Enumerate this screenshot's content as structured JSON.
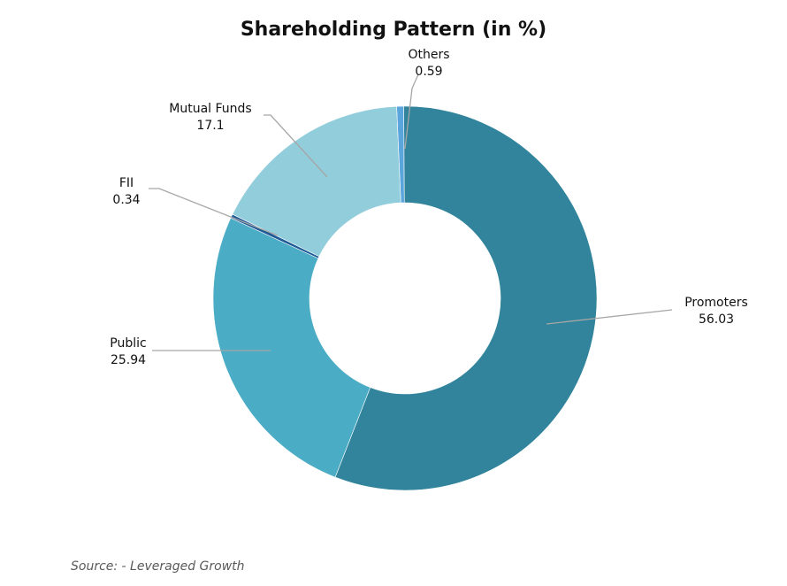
{
  "chart_data": {
    "type": "pie",
    "variant": "donut",
    "title": "Shareholding Pattern (in %)",
    "series": [
      {
        "name": "",
        "values": [
          {
            "label": "Others",
            "value": 0.59,
            "value_text": "0.59",
            "color": "#5aa5dc"
          },
          {
            "label": "Promoters",
            "value": 56.03,
            "value_text": "56.03",
            "color": "#31849b"
          },
          {
            "label": "Public",
            "value": 25.94,
            "value_text": "25.94",
            "color": "#4bacc6"
          },
          {
            "label": "FII",
            "value": 0.34,
            "value_text": "0.34",
            "color": "#1f5a96"
          },
          {
            "label": "Mutual Funds",
            "value": 17.1,
            "value_text": "17.1",
            "color": "#92cddc"
          }
        ]
      }
    ],
    "legend": "none",
    "source": "Source: - Leveraged Growth"
  }
}
